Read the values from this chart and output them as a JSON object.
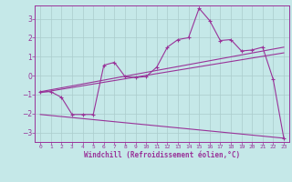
{
  "title": "",
  "xlabel": "Windchill (Refroidissement éolien,°C)",
  "bg_color": "#c5e8e8",
  "line_color": "#993399",
  "grid_color": "#aacccc",
  "xlim": [
    -0.5,
    23.5
  ],
  "ylim": [
    -3.5,
    3.7
  ],
  "yticks": [
    -3,
    -2,
    -1,
    0,
    1,
    2,
    3
  ],
  "xticks": [
    0,
    1,
    2,
    3,
    4,
    5,
    6,
    7,
    8,
    9,
    10,
    11,
    12,
    13,
    14,
    15,
    16,
    17,
    18,
    19,
    20,
    21,
    22,
    23
  ],
  "series": [
    [
      0,
      -0.85
    ],
    [
      1,
      -0.85
    ],
    [
      2,
      -1.15
    ],
    [
      3,
      -2.05
    ],
    [
      4,
      -2.05
    ],
    [
      5,
      -2.05
    ],
    [
      6,
      0.55
    ],
    [
      7,
      0.7
    ],
    [
      8,
      -0.05
    ],
    [
      9,
      -0.1
    ],
    [
      10,
      -0.05
    ],
    [
      11,
      0.45
    ],
    [
      12,
      1.5
    ],
    [
      13,
      1.9
    ],
    [
      14,
      2.0
    ],
    [
      15,
      3.55
    ],
    [
      16,
      2.9
    ],
    [
      17,
      1.85
    ],
    [
      18,
      1.9
    ],
    [
      19,
      1.3
    ],
    [
      20,
      1.35
    ],
    [
      21,
      1.5
    ],
    [
      22,
      -0.2
    ],
    [
      23,
      -3.3
    ]
  ],
  "line2": [
    [
      0,
      -0.85
    ],
    [
      23,
      1.5
    ]
  ],
  "line3": [
    [
      0,
      -0.9
    ],
    [
      23,
      1.2
    ]
  ],
  "line4": [
    [
      0,
      -2.05
    ],
    [
      23,
      -3.3
    ]
  ]
}
